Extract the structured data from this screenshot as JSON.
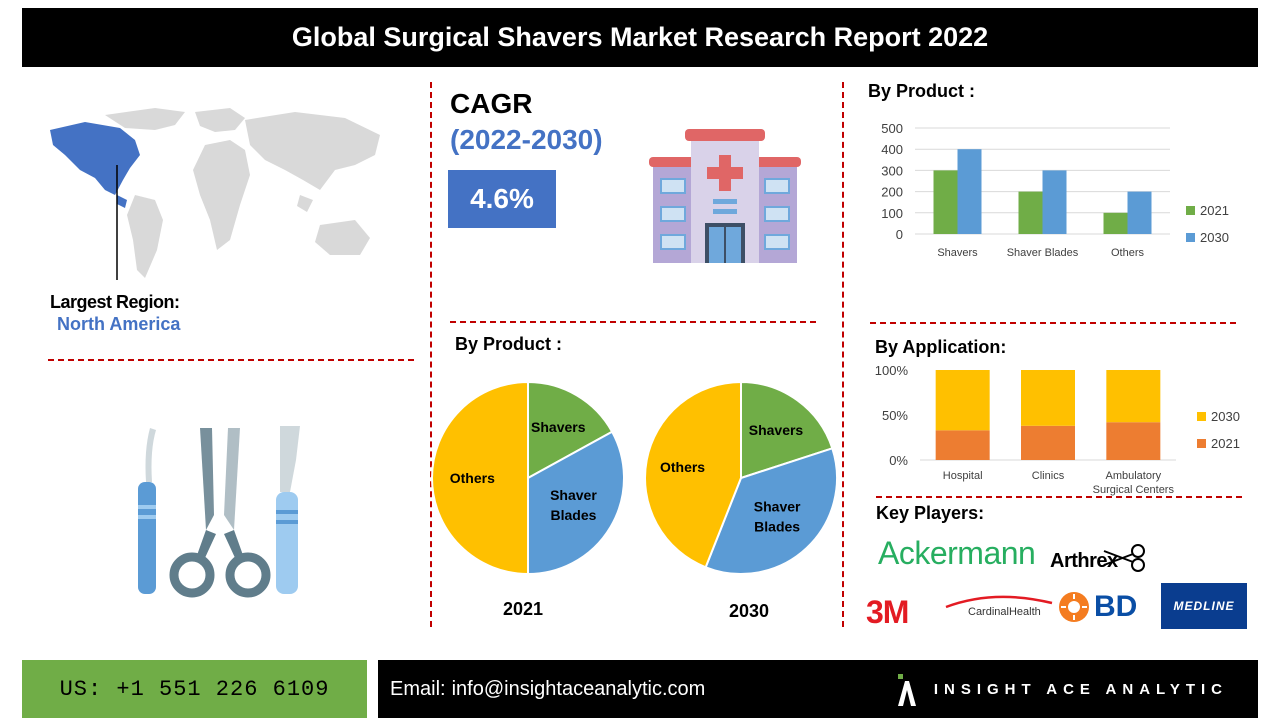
{
  "title": "Global Surgical Shavers Market Research Report 2022",
  "region": {
    "label": "Largest Region:",
    "value": "North America"
  },
  "cagr": {
    "label": "CAGR",
    "period": "(2022-2030)",
    "value": "4.6%"
  },
  "colors": {
    "green": "#70ad47",
    "blue": "#5b9bd5",
    "orange": "#ed7d31",
    "yellow": "#ffc000",
    "red": "#c00000",
    "cagr_box": "#4472c4",
    "region_text": "#4472c4"
  },
  "icons": [
    "world-map-icon",
    "hospital-icon",
    "surgical-tools-icon"
  ],
  "chart_data": [
    {
      "type": "bar",
      "heading": "By Product :",
      "categories": [
        "Shavers",
        "Shaver Blades",
        "Others"
      ],
      "series": [
        {
          "name": "2021",
          "values": [
            300,
            200,
            100
          ]
        },
        {
          "name": "2030",
          "values": [
            400,
            300,
            200
          ]
        }
      ],
      "yticks": [
        "500",
        "400",
        "300",
        "200",
        "100",
        "0"
      ],
      "ylim": [
        0,
        500
      ],
      "grid": true,
      "legend": "right"
    },
    {
      "type": "bar",
      "heading": "By Application:",
      "stacked": true,
      "categories": [
        "Hospital",
        "Clinics",
        "Ambulatory Surgical Centers"
      ],
      "series": [
        {
          "name": "2021",
          "values": [
            33,
            38,
            42
          ]
        },
        {
          "name": "2030",
          "values": [
            67,
            62,
            58
          ]
        }
      ],
      "yticks": [
        "100%",
        "50%",
        "0%"
      ],
      "ylim": [
        0,
        100
      ],
      "legend": "right"
    },
    {
      "type": "pie",
      "heading": "By Product :",
      "caption": "2021",
      "slices": [
        {
          "label": "Shavers",
          "value": 17
        },
        {
          "label": "Shaver Blades",
          "value": 33
        },
        {
          "label": "Others",
          "value": 50
        }
      ]
    },
    {
      "type": "pie",
      "caption": "2030",
      "slices": [
        {
          "label": "Shavers",
          "value": 20
        },
        {
          "label": "Shaver Blades",
          "value": 36
        },
        {
          "label": "Others",
          "value": 44
        }
      ]
    }
  ],
  "key_players": {
    "heading": "Key Players:",
    "logos": [
      "Ackermann",
      "Arthrex",
      "3M",
      "CardinalHealth",
      "BD",
      "MEDLINE"
    ]
  },
  "footer": {
    "phone": "US: +1 551 226 6109",
    "email_label": "Email:",
    "email": "info@insightaceanalytic.com",
    "brand": "INSIGHT ACE ANALYTIC"
  }
}
